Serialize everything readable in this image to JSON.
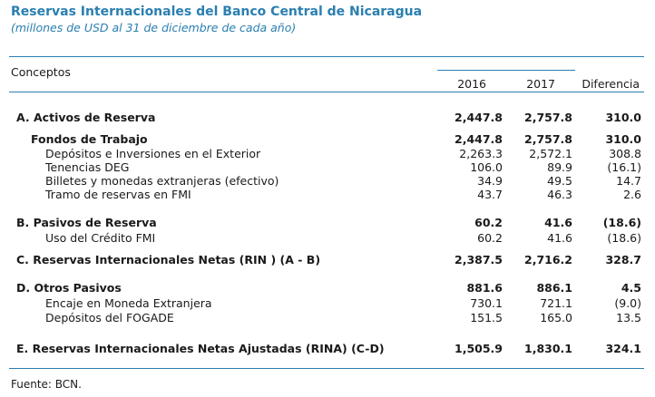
{
  "title": "Reservas Internacionales del Banco Central de Nicaragua",
  "subtitle": "(millones de USD al 31 de diciembre de cada año)",
  "header": {
    "concepts": "Conceptos",
    "y2016": "2016",
    "y2017": "2017",
    "diff": "Diferencia"
  },
  "rows": [
    {
      "label": "A. Activos de Reserva",
      "v2016": "2,447.8",
      "v2017": "2,757.8",
      "diff": "310.0"
    },
    {
      "label": "Fondos de Trabajo",
      "v2016": "2,447.8",
      "v2017": "2,757.8",
      "diff": "310.0"
    },
    {
      "label": "Depósitos e Inversiones en el Exterior",
      "v2016": "2,263.3",
      "v2017": "2,572.1",
      "diff": "308.8"
    },
    {
      "label": "Tenencias DEG",
      "v2016": "106.0",
      "v2017": "89.9",
      "diff": "(16.1)"
    },
    {
      "label": "Billetes y monedas extranjeras (efectivo)",
      "v2016": "34.9",
      "v2017": "49.5",
      "diff": "14.7"
    },
    {
      "label": "Tramo de reservas en FMI",
      "v2016": "43.7",
      "v2017": "46.3",
      "diff": "2.6"
    },
    {
      "label": "B. Pasivos de Reserva",
      "v2016": "60.2",
      "v2017": "41.6",
      "diff": "(18.6)"
    },
    {
      "label": "Uso del Crédito FMI",
      "v2016": "60.2",
      "v2017": "41.6",
      "diff": "(18.6)"
    },
    {
      "label": "C. Reservas Internacionales Netas (RIN ) (A - B)",
      "v2016": "2,387.5",
      "v2017": "2,716.2",
      "diff": "328.7"
    },
    {
      "label": "D. Otros Pasivos",
      "v2016": "881.6",
      "v2017": "886.1",
      "diff": "4.5"
    },
    {
      "label": "Encaje en Moneda Extranjera",
      "v2016": "730.1",
      "v2017": "721.1",
      "diff": "(9.0)"
    },
    {
      "label": "Depósitos del FOGADE",
      "v2016": "151.5",
      "v2017": "165.0",
      "diff": "13.5"
    },
    {
      "label": "E. Reservas Internacionales Netas Ajustadas (RINA) (C-D)",
      "v2016": "1,505.9",
      "v2017": "1,830.1",
      "diff": "324.1"
    }
  ],
  "source": "Fuente: BCN."
}
